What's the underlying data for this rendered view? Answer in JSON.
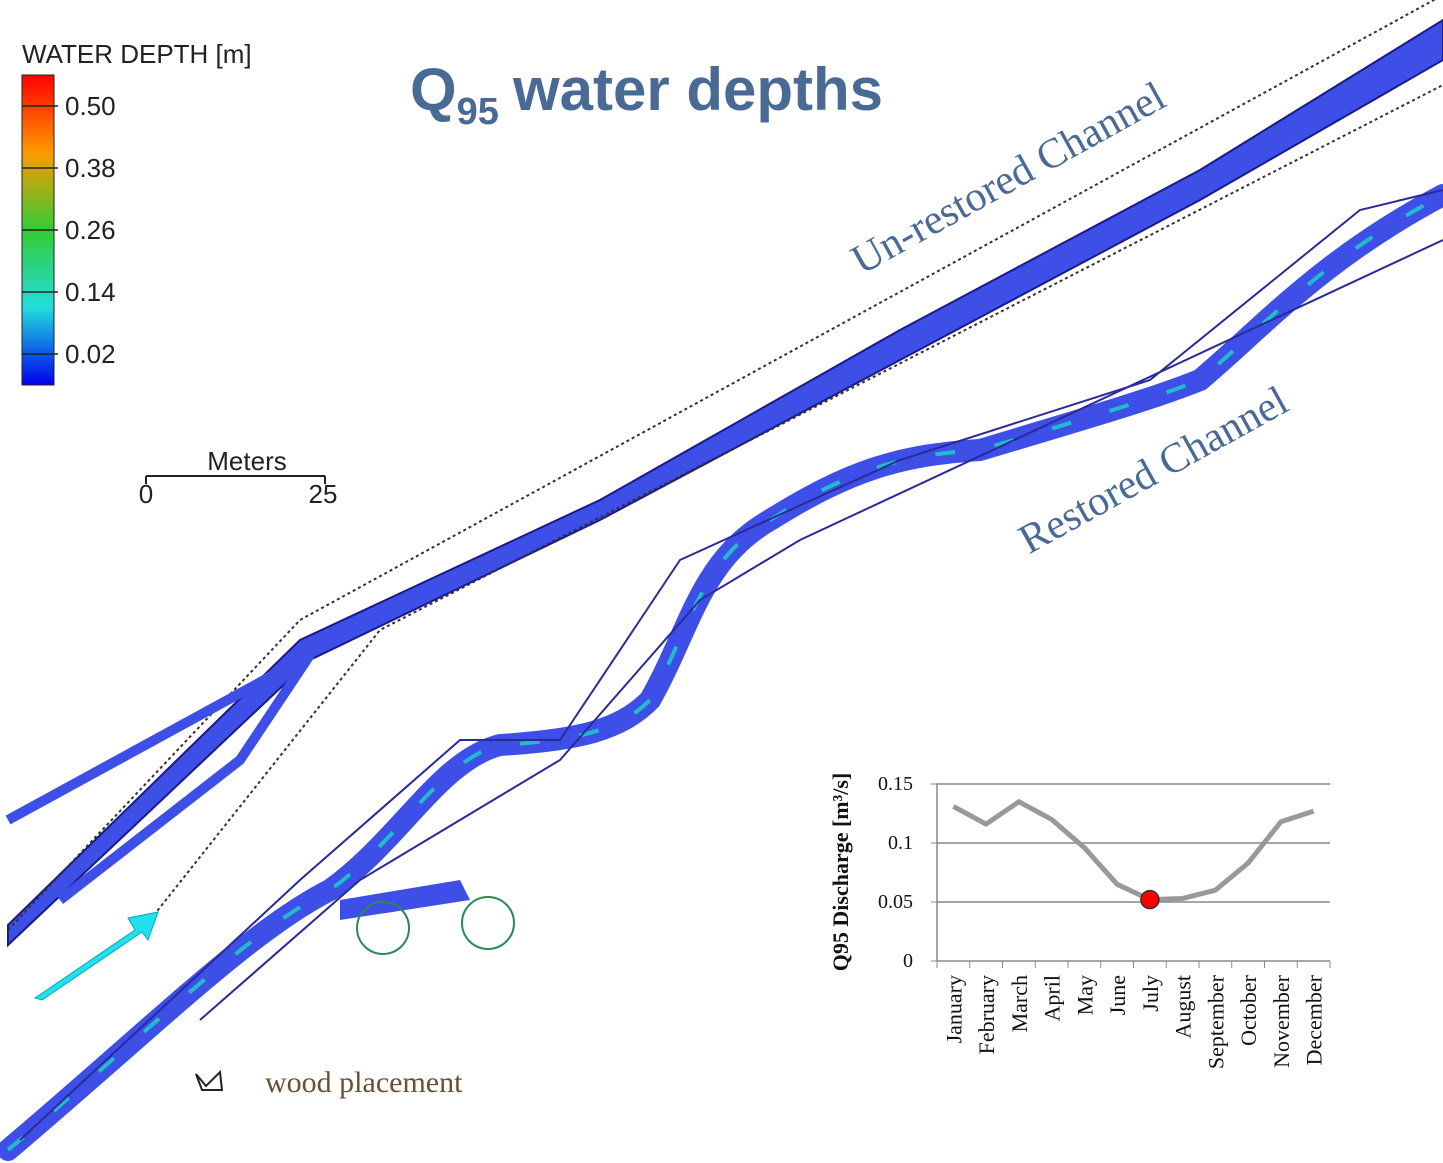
{
  "title": {
    "main": "Q",
    "sub": "95",
    "rest": "water depths"
  },
  "legend": {
    "title": "WATER DEPTH [m]",
    "entries": [
      {
        "label": "0.50",
        "color": "#ff0000"
      },
      {
        "label": "0.38",
        "color": "#ff9900"
      },
      {
        "label": "0.26",
        "color": "#33cc33"
      },
      {
        "label": "0.14",
        "color": "#22dddd"
      },
      {
        "label": "0.02",
        "color": "#0000ee"
      }
    ]
  },
  "scale_bar": {
    "title": "Meters",
    "start": "0",
    "end": "25"
  },
  "channel_labels": {
    "unrestored": "Un-restored Channel",
    "restored": "Restored Channel"
  },
  "wood_legend": "wood placement",
  "chart_data": {
    "type": "line",
    "y_label": "Q95 Discharge [m³/s]",
    "categories": [
      "January",
      "February",
      "March",
      "April",
      "May",
      "June",
      "July",
      "August",
      "September",
      "October",
      "November",
      "December"
    ],
    "values": [
      0.131,
      0.116,
      0.135,
      0.12,
      0.096,
      0.065,
      0.052,
      0.053,
      0.06,
      0.083,
      0.118,
      0.127
    ],
    "color": "#999999",
    "ylim": [
      0,
      0.15
    ],
    "yticks": [
      0,
      0.05,
      0.1,
      0.15
    ],
    "grid": true,
    "highlight_index": 6,
    "highlight_color": "#ff0000"
  }
}
